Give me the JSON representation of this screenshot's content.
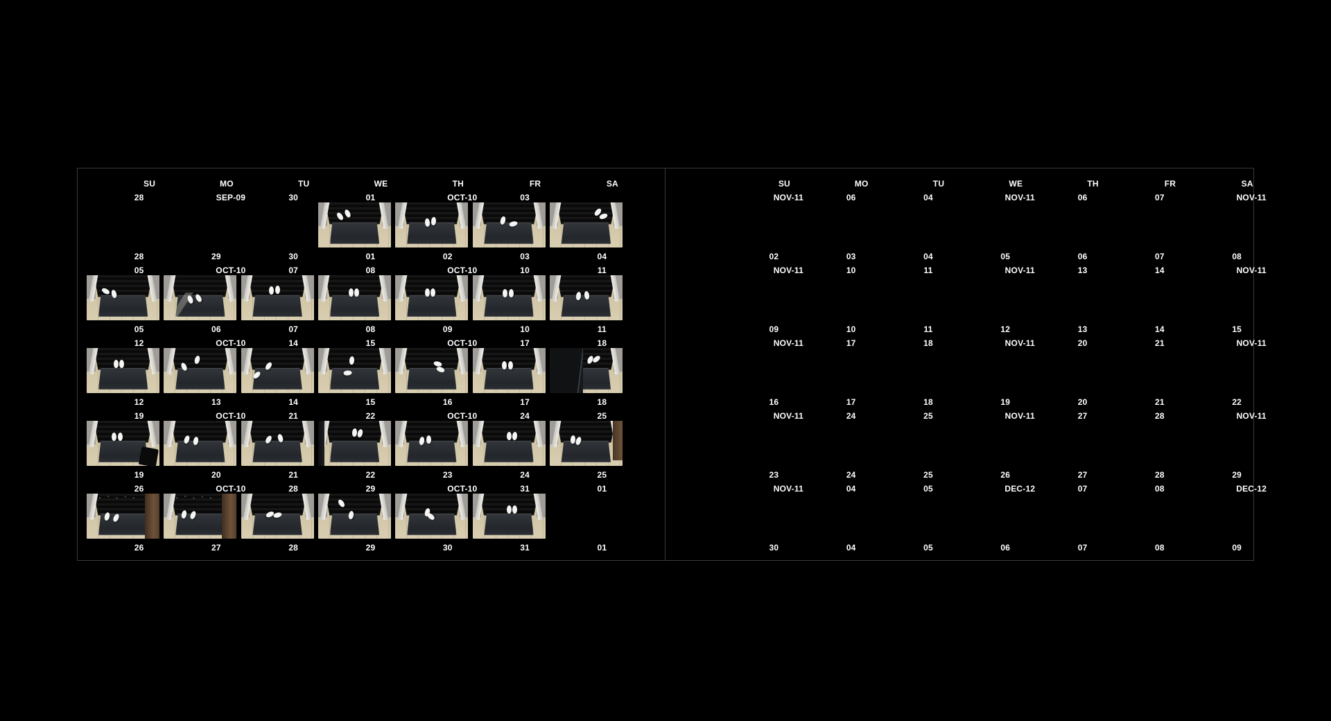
{
  "colors": {
    "background": "#000000",
    "border": "#3a3a3a",
    "text": "#ffffff",
    "mat": "#26292c",
    "wood_floor": "#d0c4a6",
    "door_frame": "#efede8"
  },
  "weekday_headers": [
    "SU",
    "MO",
    "TU",
    "WE",
    "TH",
    "FR",
    "SA"
  ],
  "left_panel": {
    "rows": [
      {
        "top": [
          "28",
          "SEP-09",
          "30",
          "01",
          "OCT-10",
          "03",
          ""
        ],
        "bottom": [
          "28",
          "29",
          "30",
          "01",
          "02",
          "03",
          "04"
        ]
      },
      {
        "top": [
          "05",
          "OCT-10",
          "07",
          "08",
          "OCT-10",
          "10",
          "11"
        ],
        "bottom": [
          "05",
          "06",
          "07",
          "08",
          "09",
          "10",
          "11"
        ]
      },
      {
        "top": [
          "12",
          "OCT-10",
          "14",
          "15",
          "OCT-10",
          "17",
          "18"
        ],
        "bottom": [
          "12",
          "13",
          "14",
          "15",
          "16",
          "17",
          "18"
        ]
      },
      {
        "top": [
          "19",
          "OCT-10",
          "21",
          "22",
          "OCT-10",
          "24",
          "25"
        ],
        "bottom": [
          "19",
          "20",
          "21",
          "22",
          "23",
          "24",
          "25"
        ]
      },
      {
        "top": [
          "26",
          "OCT-10",
          "28",
          "29",
          "OCT-10",
          "31",
          "01"
        ],
        "bottom": [
          "26",
          "27",
          "28",
          "29",
          "30",
          "31",
          "01"
        ]
      }
    ]
  },
  "right_panel": {
    "rows": [
      {
        "top": [
          "NOV-11",
          "06",
          "04",
          "NOV-11",
          "06",
          "07",
          "NOV-11"
        ],
        "bottom": [
          "02",
          "03",
          "04",
          "05",
          "06",
          "07",
          "08"
        ]
      },
      {
        "top": [
          "NOV-11",
          "10",
          "11",
          "NOV-11",
          "13",
          "14",
          "NOV-11"
        ],
        "bottom": [
          "09",
          "10",
          "11",
          "12",
          "13",
          "14",
          "15"
        ]
      },
      {
        "top": [
          "NOV-11",
          "17",
          "18",
          "NOV-11",
          "20",
          "21",
          "NOV-11"
        ],
        "bottom": [
          "16",
          "17",
          "18",
          "19",
          "20",
          "21",
          "22"
        ]
      },
      {
        "top": [
          "NOV-11",
          "24",
          "25",
          "NOV-11",
          "27",
          "28",
          "NOV-11"
        ],
        "bottom": [
          "23",
          "24",
          "25",
          "26",
          "27",
          "28",
          "29"
        ]
      },
      {
        "top": [
          "NOV-11",
          "04",
          "05",
          "DEC-12",
          "07",
          "08",
          "DEC-12"
        ],
        "bottom": [
          "30",
          "04",
          "05",
          "06",
          "07",
          "08",
          "09"
        ]
      }
    ]
  },
  "thumb_cells": [
    {
      "row": 0,
      "col": 3,
      "shoes": [
        [
          30,
          30,
          -35
        ],
        [
          40,
          24,
          -25
        ]
      ],
      "overlay": null
    },
    {
      "row": 0,
      "col": 4,
      "shoes": [
        [
          44,
          44,
          -5
        ],
        [
          53,
          42,
          5
        ]
      ],
      "overlay": null
    },
    {
      "row": 0,
      "col": 5,
      "shoes": [
        [
          42,
          40,
          15
        ],
        [
          56,
          48,
          75
        ]
      ],
      "overlay": null
    },
    {
      "row": 0,
      "col": 6,
      "shoes": [
        [
          66,
          22,
          40
        ],
        [
          74,
          30,
          70
        ]
      ],
      "overlay": null
    },
    {
      "row": 1,
      "col": 0,
      "shoes": [
        [
          26,
          36,
          -60
        ],
        [
          38,
          42,
          -15
        ]
      ],
      "overlay": null
    },
    {
      "row": 1,
      "col": 1,
      "shoes": [
        [
          36,
          54,
          -20
        ],
        [
          48,
          50,
          -30
        ]
      ],
      "overlay": "light"
    },
    {
      "row": 1,
      "col": 2,
      "shoes": [
        [
          42,
          34,
          0
        ],
        [
          50,
          33,
          0
        ]
      ],
      "overlay": null
    },
    {
      "row": 1,
      "col": 3,
      "shoes": [
        [
          45,
          38,
          0
        ],
        [
          53,
          38,
          0
        ]
      ],
      "overlay": null
    },
    {
      "row": 1,
      "col": 4,
      "shoes": [
        [
          44,
          38,
          0
        ],
        [
          52,
          38,
          0
        ]
      ],
      "overlay": null
    },
    {
      "row": 1,
      "col": 5,
      "shoes": [
        [
          45,
          40,
          0
        ],
        [
          53,
          40,
          0
        ]
      ],
      "overlay": null
    },
    {
      "row": 1,
      "col": 6,
      "shoes": [
        [
          40,
          46,
          8
        ],
        [
          51,
          45,
          -8
        ]
      ],
      "overlay": null
    },
    {
      "row": 2,
      "col": 0,
      "shoes": [
        [
          40,
          36,
          0
        ],
        [
          48,
          36,
          0
        ]
      ],
      "overlay": null
    },
    {
      "row": 2,
      "col": 1,
      "shoes": [
        [
          28,
          42,
          -25
        ],
        [
          46,
          26,
          15
        ]
      ],
      "overlay": null
    },
    {
      "row": 2,
      "col": 2,
      "shoes": [
        [
          38,
          40,
          35
        ],
        [
          22,
          60,
          45
        ]
      ],
      "overlay": null
    },
    {
      "row": 2,
      "col": 3,
      "shoes": [
        [
          46,
          28,
          5
        ],
        [
          40,
          56,
          85
        ]
      ],
      "overlay": null
    },
    {
      "row": 2,
      "col": 4,
      "shoes": [
        [
          58,
          36,
          -75
        ],
        [
          62,
          48,
          -70
        ]
      ],
      "overlay": null
    },
    {
      "row": 2,
      "col": 5,
      "shoes": [
        [
          44,
          38,
          0
        ],
        [
          52,
          38,
          0
        ]
      ],
      "overlay": null
    },
    {
      "row": 2,
      "col": 6,
      "shoes": [
        [
          56,
          26,
          25
        ],
        [
          64,
          24,
          50
        ]
      ],
      "overlay": "doordark"
    },
    {
      "row": 3,
      "col": 0,
      "shoes": [
        [
          38,
          36,
          0
        ],
        [
          46,
          36,
          0
        ]
      ],
      "overlay": "bag"
    },
    {
      "row": 3,
      "col": 1,
      "shoes": [
        [
          32,
          42,
          20
        ],
        [
          44,
          44,
          10
        ]
      ],
      "overlay": null
    },
    {
      "row": 3,
      "col": 2,
      "shoes": [
        [
          38,
          42,
          30
        ],
        [
          54,
          38,
          -15
        ]
      ],
      "overlay": null
    },
    {
      "row": 3,
      "col": 3,
      "shoes": [
        [
          50,
          26,
          5
        ],
        [
          58,
          28,
          15
        ]
      ],
      "overlay": "sliver"
    },
    {
      "row": 3,
      "col": 4,
      "shoes": [
        [
          36,
          44,
          10
        ],
        [
          46,
          42,
          0
        ]
      ],
      "overlay": null
    },
    {
      "row": 3,
      "col": 5,
      "shoes": [
        [
          50,
          34,
          0
        ],
        [
          58,
          34,
          5
        ]
      ],
      "overlay": null
    },
    {
      "row": 3,
      "col": 6,
      "shoes": [
        [
          32,
          42,
          5
        ],
        [
          40,
          44,
          18
        ]
      ],
      "overlay": "brown"
    },
    {
      "row": 4,
      "col": 0,
      "shoes": [
        [
          28,
          50,
          15
        ],
        [
          40,
          54,
          25
        ]
      ],
      "overlay": "brownwide-plants"
    },
    {
      "row": 4,
      "col": 1,
      "shoes": [
        [
          28,
          46,
          12
        ],
        [
          40,
          48,
          22
        ]
      ],
      "overlay": "brownwide-plants"
    },
    {
      "row": 4,
      "col": 2,
      "shoes": [
        [
          40,
          46,
          65
        ],
        [
          50,
          48,
          75
        ]
      ],
      "overlay": null
    },
    {
      "row": 4,
      "col": 3,
      "shoes": [
        [
          32,
          22,
          -35
        ],
        [
          45,
          48,
          10
        ]
      ],
      "overlay": null
    },
    {
      "row": 4,
      "col": 4,
      "shoes": [
        [
          44,
          42,
          15
        ],
        [
          49,
          50,
          -50
        ]
      ],
      "overlay": null
    },
    {
      "row": 4,
      "col": 5,
      "shoes": [
        [
          50,
          36,
          0
        ],
        [
          58,
          36,
          0
        ]
      ],
      "overlay": null
    }
  ]
}
